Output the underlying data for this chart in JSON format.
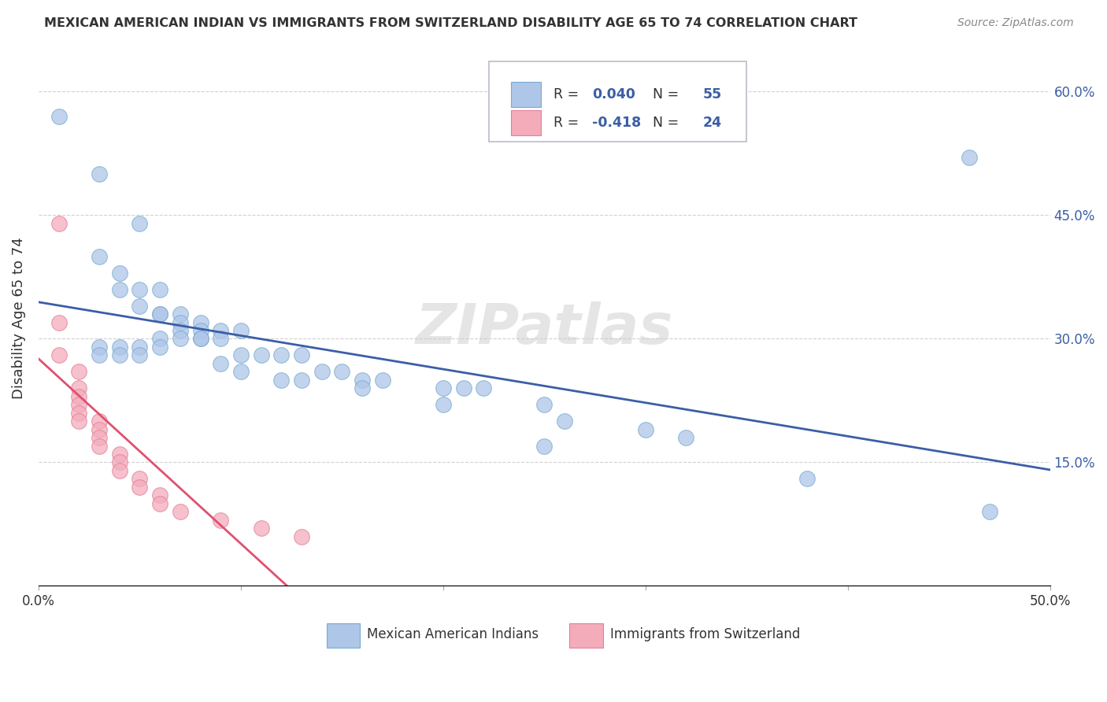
{
  "title": "MEXICAN AMERICAN INDIAN VS IMMIGRANTS FROM SWITZERLAND DISABILITY AGE 65 TO 74 CORRELATION CHART",
  "source": "Source: ZipAtlas.com",
  "ylabel": "Disability Age 65 to 74",
  "xlabel": "",
  "xlim": [
    0.0,
    0.5
  ],
  "ylim": [
    0.0,
    0.65
  ],
  "xticks": [
    0.0,
    0.1,
    0.2,
    0.3,
    0.4,
    0.5
  ],
  "xticklabels": [
    "0.0%",
    "",
    "",
    "",
    "",
    "50.0%"
  ],
  "yticks": [
    0.0,
    0.15,
    0.3,
    0.45,
    0.6
  ],
  "yticklabels_right": [
    "",
    "15.0%",
    "30.0%",
    "45.0%",
    "60.0%"
  ],
  "blue_R": 0.04,
  "blue_N": 55,
  "pink_R": -0.418,
  "pink_N": 24,
  "blue_color": "#AEC6E8",
  "blue_edge_color": "#7AAAD0",
  "blue_line_color": "#3B5EA6",
  "pink_color": "#F4ACBB",
  "pink_edge_color": "#E0809A",
  "pink_line_color": "#E05070",
  "blue_scatter": [
    [
      0.01,
      0.57
    ],
    [
      0.03,
      0.5
    ],
    [
      0.05,
      0.44
    ],
    [
      0.03,
      0.4
    ],
    [
      0.04,
      0.38
    ],
    [
      0.04,
      0.36
    ],
    [
      0.05,
      0.36
    ],
    [
      0.06,
      0.36
    ],
    [
      0.05,
      0.34
    ],
    [
      0.06,
      0.33
    ],
    [
      0.06,
      0.33
    ],
    [
      0.07,
      0.33
    ],
    [
      0.07,
      0.32
    ],
    [
      0.08,
      0.32
    ],
    [
      0.07,
      0.31
    ],
    [
      0.08,
      0.31
    ],
    [
      0.09,
      0.31
    ],
    [
      0.1,
      0.31
    ],
    [
      0.06,
      0.3
    ],
    [
      0.07,
      0.3
    ],
    [
      0.08,
      0.3
    ],
    [
      0.08,
      0.3
    ],
    [
      0.09,
      0.3
    ],
    [
      0.03,
      0.29
    ],
    [
      0.04,
      0.29
    ],
    [
      0.05,
      0.29
    ],
    [
      0.06,
      0.29
    ],
    [
      0.03,
      0.28
    ],
    [
      0.04,
      0.28
    ],
    [
      0.05,
      0.28
    ],
    [
      0.1,
      0.28
    ],
    [
      0.11,
      0.28
    ],
    [
      0.12,
      0.28
    ],
    [
      0.13,
      0.28
    ],
    [
      0.09,
      0.27
    ],
    [
      0.1,
      0.26
    ],
    [
      0.14,
      0.26
    ],
    [
      0.15,
      0.26
    ],
    [
      0.12,
      0.25
    ],
    [
      0.13,
      0.25
    ],
    [
      0.16,
      0.25
    ],
    [
      0.17,
      0.25
    ],
    [
      0.16,
      0.24
    ],
    [
      0.2,
      0.24
    ],
    [
      0.21,
      0.24
    ],
    [
      0.22,
      0.24
    ],
    [
      0.2,
      0.22
    ],
    [
      0.25,
      0.22
    ],
    [
      0.26,
      0.2
    ],
    [
      0.3,
      0.19
    ],
    [
      0.32,
      0.18
    ],
    [
      0.25,
      0.17
    ],
    [
      0.38,
      0.13
    ],
    [
      0.46,
      0.52
    ],
    [
      0.47,
      0.09
    ]
  ],
  "pink_scatter": [
    [
      0.01,
      0.44
    ],
    [
      0.01,
      0.32
    ],
    [
      0.01,
      0.28
    ],
    [
      0.02,
      0.26
    ],
    [
      0.02,
      0.24
    ],
    [
      0.02,
      0.23
    ],
    [
      0.02,
      0.22
    ],
    [
      0.02,
      0.21
    ],
    [
      0.02,
      0.2
    ],
    [
      0.03,
      0.2
    ],
    [
      0.03,
      0.19
    ],
    [
      0.03,
      0.18
    ],
    [
      0.03,
      0.17
    ],
    [
      0.04,
      0.16
    ],
    [
      0.04,
      0.15
    ],
    [
      0.04,
      0.14
    ],
    [
      0.05,
      0.13
    ],
    [
      0.05,
      0.12
    ],
    [
      0.06,
      0.11
    ],
    [
      0.06,
      0.1
    ],
    [
      0.07,
      0.09
    ],
    [
      0.09,
      0.08
    ],
    [
      0.11,
      0.07
    ],
    [
      0.13,
      0.06
    ]
  ],
  "watermark": "ZIPatlas",
  "legend_label_blue": "Mexican American Indians",
  "legend_label_pink": "Immigrants from Switzerland",
  "background_color": "#FFFFFF",
  "grid_color": "#CCCCCC"
}
